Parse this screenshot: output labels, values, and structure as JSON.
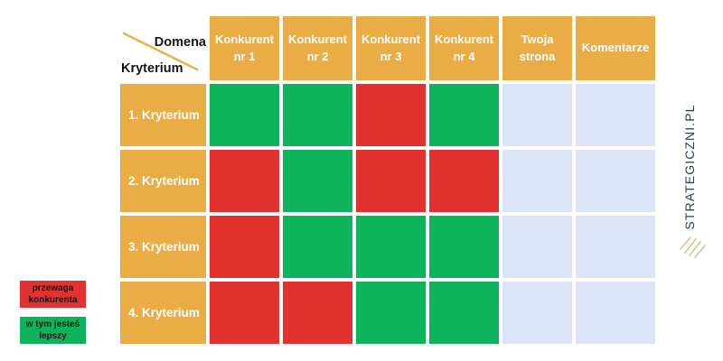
{
  "table": {
    "corner": {
      "domain_label": "Domena",
      "criterion_label": "Kryterium"
    },
    "columns": [
      "Konkurent nr 1",
      "Konkurent nr 2",
      "Konkurent nr 3",
      "Konkurent nr 4",
      "Twoja strona",
      "Komentarze"
    ],
    "rows": [
      {
        "label": "1. Kryterium",
        "cells": [
          "green",
          "green",
          "red",
          "green",
          "empty",
          "empty"
        ]
      },
      {
        "label": "2. Kryterium",
        "cells": [
          "red",
          "green",
          "red",
          "red",
          "empty",
          "empty"
        ]
      },
      {
        "label": "3. Kryterium",
        "cells": [
          "red",
          "green",
          "green",
          "green",
          "empty",
          "empty"
        ]
      },
      {
        "label": "4. Kryterium",
        "cells": [
          "red",
          "red",
          "green",
          "green",
          "empty",
          "empty"
        ]
      }
    ]
  },
  "legend": [
    {
      "key": "red",
      "label": "przewaga konkurenta"
    },
    {
      "key": "green",
      "label": "w tym jesteś lepszy"
    }
  ],
  "branding": {
    "name": "STRATEGICZNI.PL",
    "logo_icon": "hatched-diamond-icon"
  },
  "colors": {
    "header": "#EAAC45",
    "red": "#E23230",
    "green": "#0EB45C",
    "empty": "#DAE4F6",
    "accent_line": "#E3B44C",
    "brand": "#2C3E50",
    "logo": "#D8C8A2"
  }
}
